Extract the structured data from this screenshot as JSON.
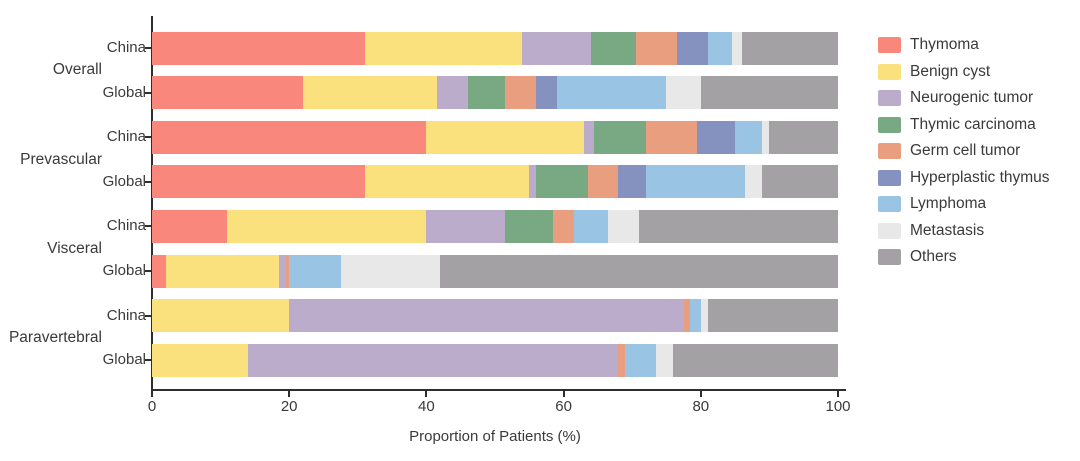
{
  "chart_data": {
    "type": "bar",
    "orientation": "horizontal-stacked",
    "title": "",
    "xlabel": "Proportion of Patients (%)",
    "xlim": [
      0,
      100
    ],
    "x_ticks": [
      0,
      20,
      40,
      60,
      80,
      100
    ],
    "grid": false,
    "legend_position": "right",
    "groups": [
      "Overall",
      "Prevascular",
      "Visceral",
      "Paravertebral"
    ],
    "series": [
      {
        "name": "Thymoma",
        "color": "#F9877C"
      },
      {
        "name": "Benign cyst",
        "color": "#FBE17E"
      },
      {
        "name": "Neurogenic tumor",
        "color": "#BCACCC"
      },
      {
        "name": "Thymic carcinoma",
        "color": "#78A982"
      },
      {
        "name": "Germ cell tumor",
        "color": "#E99F7F"
      },
      {
        "name": "Hyperplastic thymus",
        "color": "#8591BE"
      },
      {
        "name": "Lymphoma",
        "color": "#9AC4E4"
      },
      {
        "name": "Metastasis",
        "color": "#E8E8E8"
      },
      {
        "name": "Others",
        "color": "#A3A1A4"
      }
    ],
    "rows": [
      {
        "group": "Overall",
        "label": "China",
        "values": [
          31,
          23,
          10,
          6.5,
          6,
          4.5,
          3.5,
          1.5,
          14
        ]
      },
      {
        "group": "Overall",
        "label": "Global",
        "values": [
          22,
          19.5,
          4.5,
          5.5,
          4.5,
          3,
          16,
          5,
          20
        ]
      },
      {
        "group": "Prevascular",
        "label": "China",
        "values": [
          40,
          23,
          1.5,
          7.5,
          7.5,
          5.5,
          4,
          1,
          10
        ]
      },
      {
        "group": "Prevascular",
        "label": "Global",
        "values": [
          31,
          24,
          1,
          7.5,
          4.5,
          4,
          14.5,
          2.5,
          11
        ]
      },
      {
        "group": "Visceral",
        "label": "China",
        "values": [
          11,
          29,
          11.5,
          7,
          3,
          0,
          5,
          4.5,
          29
        ]
      },
      {
        "group": "Visceral",
        "label": "Global",
        "values": [
          2,
          16.5,
          1,
          0,
          0.5,
          0,
          7.5,
          14.5,
          58
        ]
      },
      {
        "group": "Paravertebral",
        "label": "China",
        "values": [
          0,
          20,
          57.5,
          0,
          1,
          0,
          1.5,
          1,
          19
        ]
      },
      {
        "group": "Paravertebral",
        "label": "Global",
        "values": [
          0,
          14,
          54,
          0,
          1,
          0,
          4.5,
          2.5,
          24
        ]
      }
    ],
    "axis_color": "#2e2e2e",
    "text_color": "#3a3a3a"
  }
}
